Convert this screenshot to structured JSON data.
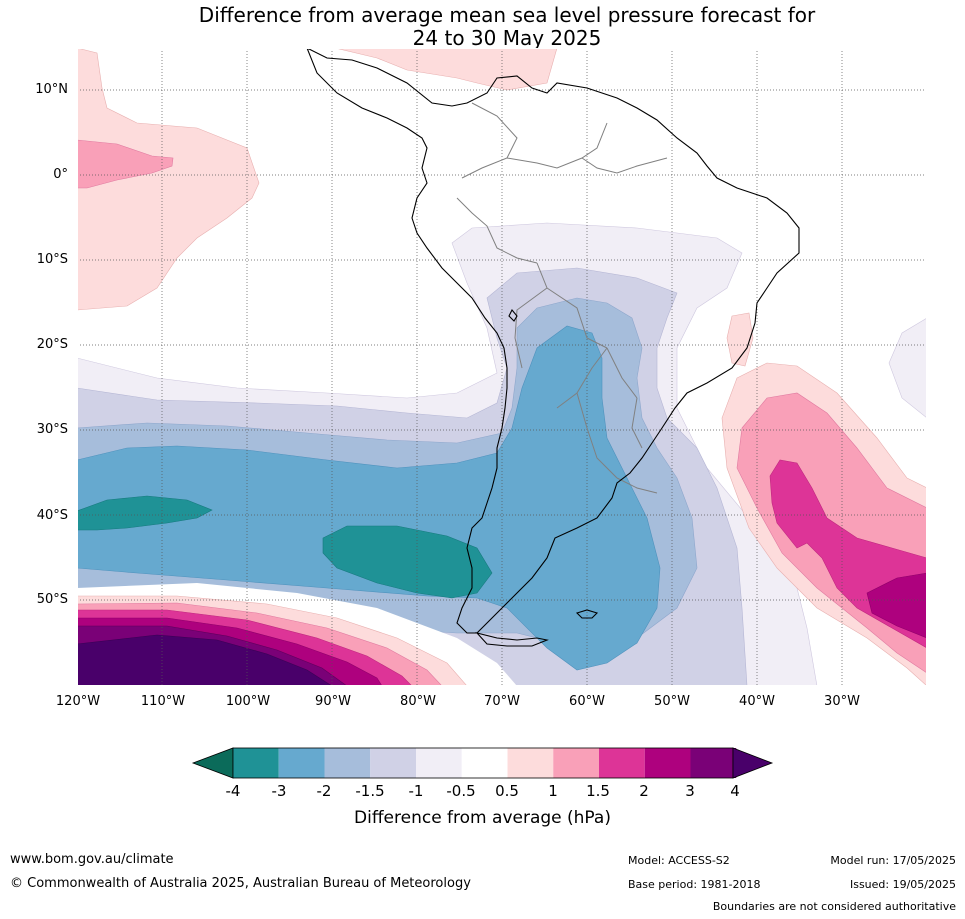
{
  "title_line1": "Difference from average mean sea level pressure forecast for",
  "title_line2": "24 to 30 May 2025",
  "lat_labels": [
    "10°N",
    "0°",
    "10°S",
    "20°S",
    "30°S",
    "40°S",
    "50°S"
  ],
  "lon_labels": [
    "120°W",
    "110°W",
    "100°W",
    "90°W",
    "80°W",
    "70°W",
    "60°W",
    "50°W",
    "40°W",
    "30°W"
  ],
  "colorbar": {
    "title": "Difference from average (hPa)",
    "tick_labels": [
      "-4",
      "-3",
      "-2",
      "-1.5",
      "-1",
      "-0.5",
      "0.5",
      "1",
      "1.5",
      "2",
      "3",
      "4"
    ],
    "colors": [
      "#0b6b5a",
      "#1f9296",
      "#66a9cf",
      "#a6bddb",
      "#d0d1e6",
      "#f1eef6",
      "#ffffff",
      "#fddcdc",
      "#f9a0b8",
      "#dd3497",
      "#ae017e",
      "#7a0177",
      "#49006a"
    ]
  },
  "footer": {
    "website": "www.bom.gov.au/climate",
    "copyright": "© Commonwealth of Australia 2025, Australian Bureau of Meteorology",
    "model": "Model: ACCESS-S2",
    "base_period": "Base period: 1981-2018",
    "model_run": "Model run: 17/05/2025",
    "issued": "Issued: 19/05/2025",
    "disclaimer": "Boundaries are not considered authoritative"
  }
}
